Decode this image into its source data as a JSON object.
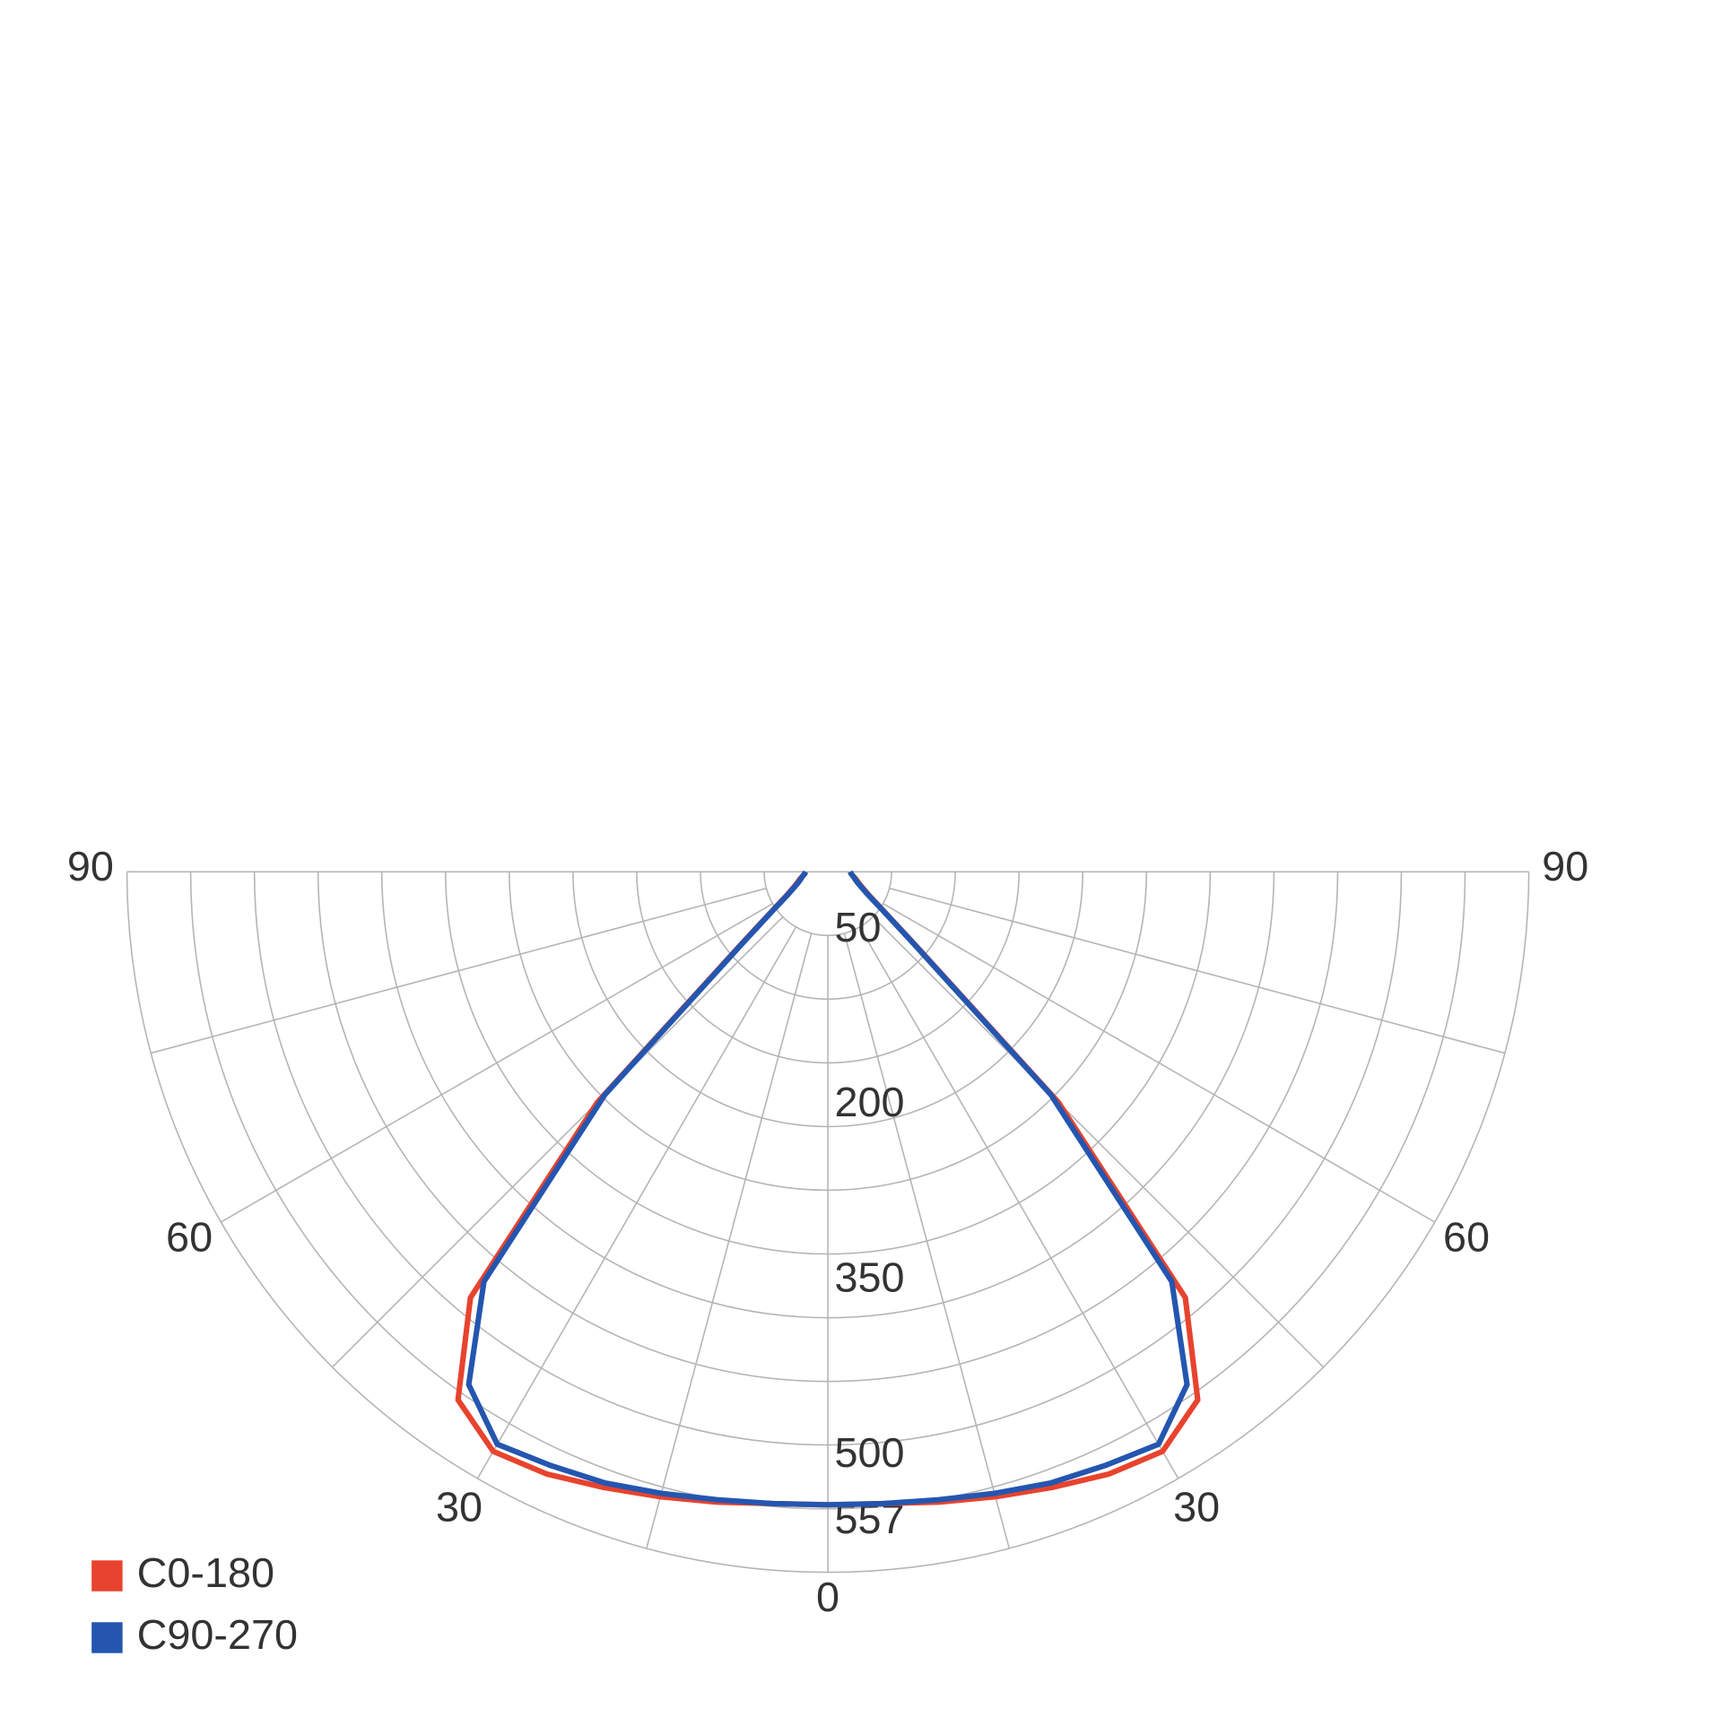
{
  "chart_data": {
    "type": "polar",
    "theta": [
      0,
      5,
      10,
      15,
      20,
      25,
      30,
      35,
      40,
      45,
      50,
      55,
      60,
      65,
      70,
      75,
      80,
      85,
      90
    ],
    "series": [
      {
        "name": "C0-180",
        "color": "#e8432e",
        "values": [
          542,
          543,
          548,
          554,
          561,
          569,
          573,
          552,
          476,
          279,
          98,
          58,
          41,
          33,
          28,
          25,
          22,
          20,
          19
        ]
      },
      {
        "name": "C90-270",
        "color": "#2456b0",
        "values": [
          542,
          543,
          546,
          551,
          557,
          561,
          566,
          536,
          458,
          270,
          96,
          57,
          40,
          32,
          27,
          24,
          22,
          20,
          19
        ]
      }
    ],
    "rlim": [
      0,
      600
    ],
    "rticks": [
      50,
      200,
      350,
      500,
      557
    ],
    "thetalim": [
      0,
      90
    ],
    "thetaticks": [
      0,
      30,
      60,
      90
    ],
    "legend": "bottom-left"
  }
}
